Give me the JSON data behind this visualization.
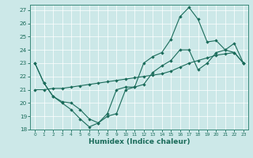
{
  "xlabel": "Humidex (Indice chaleur)",
  "bg_color": "#cce8e8",
  "line_color": "#1a6b5a",
  "xmin": -0.5,
  "xmax": 23.5,
  "ymin": 18,
  "ymax": 27.4,
  "line1_x": [
    0,
    1,
    2,
    3,
    4,
    5,
    6,
    7,
    8,
    9,
    10,
    11,
    12,
    13,
    14,
    15,
    16,
    17,
    18,
    19,
    20,
    21,
    22,
    23
  ],
  "line1_y": [
    23.0,
    21.5,
    20.5,
    20.0,
    19.5,
    18.8,
    18.2,
    18.5,
    19.0,
    19.2,
    21.0,
    21.2,
    23.0,
    23.5,
    23.8,
    24.8,
    26.5,
    27.2,
    26.3,
    24.6,
    24.7,
    24.0,
    23.8,
    23.0
  ],
  "line2_x": [
    0,
    1,
    2,
    3,
    4,
    5,
    6,
    7,
    8,
    9,
    10,
    11,
    12,
    13,
    14,
    15,
    16,
    17,
    18,
    19,
    20,
    21,
    22,
    23
  ],
  "line2_y": [
    23.0,
    21.5,
    20.5,
    20.1,
    20.0,
    19.5,
    18.8,
    18.5,
    19.2,
    21.0,
    21.2,
    21.2,
    21.4,
    22.3,
    22.8,
    23.2,
    24.0,
    24.0,
    22.5,
    23.0,
    23.8,
    24.0,
    24.5,
    23.0
  ],
  "line3_x": [
    0,
    1,
    2,
    3,
    4,
    5,
    6,
    7,
    8,
    9,
    10,
    11,
    12,
    13,
    14,
    15,
    16,
    17,
    18,
    19,
    20,
    21,
    22,
    23
  ],
  "line3_y": [
    21.0,
    21.0,
    21.1,
    21.1,
    21.2,
    21.3,
    21.4,
    21.5,
    21.6,
    21.7,
    21.8,
    21.9,
    22.0,
    22.1,
    22.2,
    22.4,
    22.7,
    23.0,
    23.2,
    23.4,
    23.6,
    23.7,
    23.8,
    23.0
  ],
  "yticks": [
    18,
    19,
    20,
    21,
    22,
    23,
    24,
    25,
    26,
    27
  ],
  "xticks": [
    0,
    1,
    2,
    3,
    4,
    5,
    6,
    7,
    8,
    9,
    10,
    11,
    12,
    13,
    14,
    15,
    16,
    17,
    18,
    19,
    20,
    21,
    22,
    23
  ],
  "grid_color": "#ffffff",
  "spine_color": "#3a8a7a",
  "tick_color": "#1a6b5a",
  "xlabel_fontsize": 6.5,
  "ylabel_fontsize": 5.5,
  "xlabel_fontweight": "bold"
}
